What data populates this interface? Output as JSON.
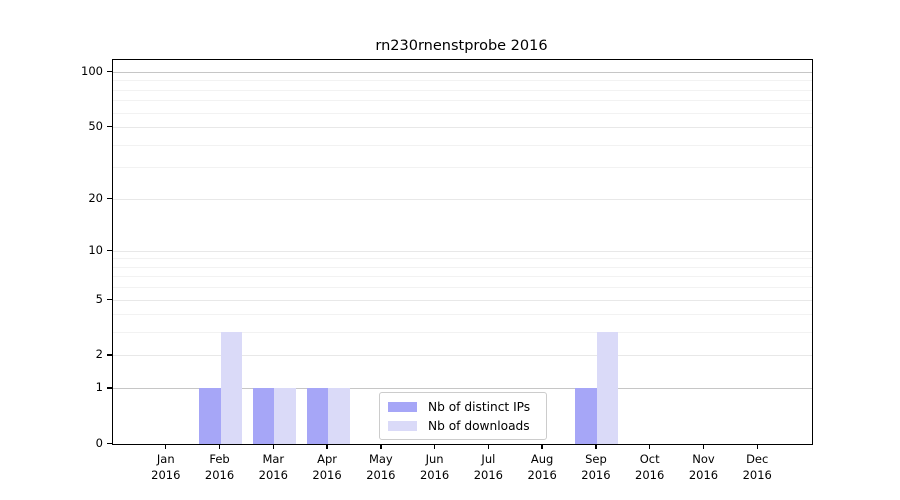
{
  "title": "rn230rnenstprobe 2016",
  "chart_data": {
    "type": "bar",
    "title": "rn230rnenstprobe 2016",
    "categories": [
      "Jan 2016",
      "Feb 2016",
      "Mar 2016",
      "Apr 2016",
      "May 2016",
      "Jun 2016",
      "Jul 2016",
      "Aug 2016",
      "Sep 2016",
      "Oct 2016",
      "Nov 2016",
      "Dec 2016"
    ],
    "x_tick_labels": [
      [
        "Jan",
        "2016"
      ],
      [
        "Feb",
        "2016"
      ],
      [
        "Mar",
        "2016"
      ],
      [
        "Apr",
        "2016"
      ],
      [
        "May",
        "2016"
      ],
      [
        "Jun",
        "2016"
      ],
      [
        "Jul",
        "2016"
      ],
      [
        "Aug",
        "2016"
      ],
      [
        "Sep",
        "2016"
      ],
      [
        "Oct",
        "2016"
      ],
      [
        "Nov",
        "2016"
      ],
      [
        "Dec",
        "2016"
      ]
    ],
    "series": [
      {
        "name": "Nb of distinct IPs",
        "color": "#a6a6f7",
        "values": [
          0,
          1,
          1,
          1,
          0,
          0,
          0,
          0,
          1,
          0,
          0,
          0
        ]
      },
      {
        "name": "Nb of downloads",
        "color": "#dadaf8",
        "values": [
          0,
          3,
          1,
          1,
          0,
          0,
          0,
          0,
          3,
          0,
          0,
          0
        ]
      }
    ],
    "yscale": "log1p",
    "ylim": [
      0,
      100
    ],
    "major_yticks": [
      0,
      1,
      2,
      5,
      10,
      20,
      50,
      100
    ],
    "minor_yticks": [
      3,
      4,
      6,
      7,
      8,
      9,
      30,
      40,
      60,
      70,
      80,
      90
    ],
    "emphasized_gridlines": [
      1,
      100
    ],
    "grid": true,
    "legend_position": "lower center"
  },
  "colors": {
    "background": "#ffffff",
    "bar_distinct_ips": "#a6a6f7",
    "bar_downloads": "#dadaf8",
    "grid_major": "#e8e8e8",
    "grid_minor": "#f2f2f2",
    "grid_emphasis": "#c6c6c6",
    "axis": "#000000",
    "legend_border": "#cccccc",
    "text": "#000000"
  }
}
